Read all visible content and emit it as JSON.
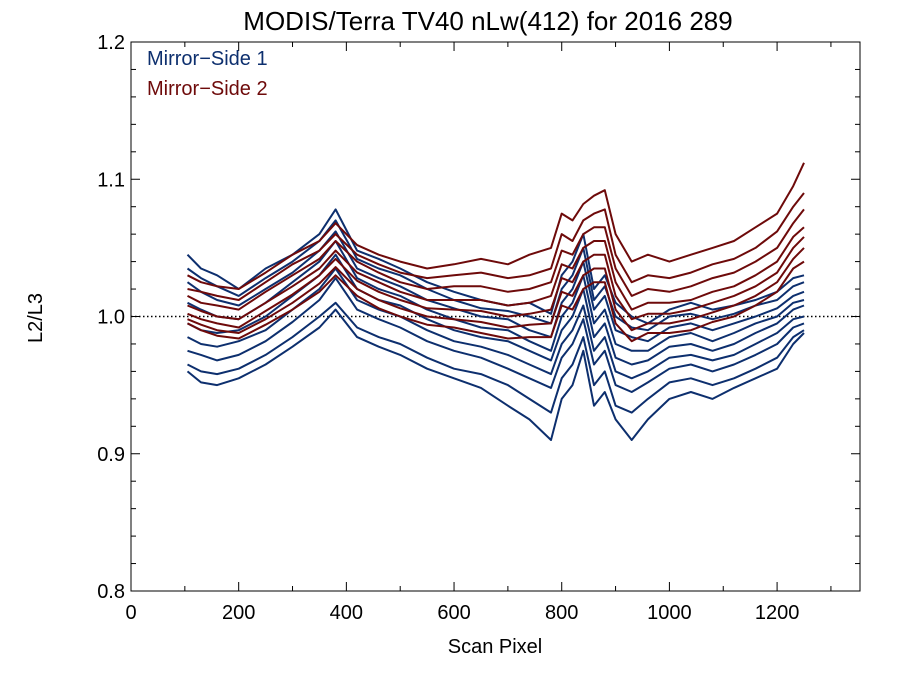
{
  "chart_data": {
    "type": "line",
    "title": "MODIS/Terra TV40 nLw(412) for 2016 289",
    "xlabel": "Scan Pixel",
    "ylabel": "L2/L3",
    "xlim": [
      0,
      1354
    ],
    "ylim": [
      0.8,
      1.2
    ],
    "xticks": [
      0,
      200,
      400,
      600,
      800,
      1000,
      1200
    ],
    "xtick_labels": [
      "0",
      "200",
      "400",
      "600",
      "800",
      "1000",
      "1200"
    ],
    "yticks": [
      0.8,
      0.9,
      1.0,
      1.1,
      1.2
    ],
    "ytick_labels": [
      "0.8",
      "0.9",
      "1.0",
      "1.1",
      "1.2"
    ],
    "reference_line": 1.0,
    "legend_position": "top-left",
    "legend": [
      {
        "label": "Mirror−Side 1",
        "color": "#0d2f6e"
      },
      {
        "label": "Mirror−Side 2",
        "color": "#6e0a0a"
      }
    ],
    "x": [
      105,
      130,
      160,
      200,
      250,
      300,
      350,
      380,
      420,
      460,
      500,
      550,
      600,
      650,
      700,
      740,
      780,
      800,
      820,
      840,
      860,
      880,
      900,
      930,
      960,
      1000,
      1040,
      1080,
      1120,
      1160,
      1200,
      1230,
      1250
    ],
    "series": [
      {
        "mirror_side": 1,
        "values": [
          1.045,
          1.035,
          1.03,
          1.02,
          1.035,
          1.045,
          1.06,
          1.078,
          1.048,
          1.042,
          1.035,
          1.025,
          1.018,
          1.012,
          1.008,
          1.01,
          1.002,
          1.03,
          1.04,
          1.06,
          1.02,
          1.03,
          1.01,
          1.0,
          0.995,
          1.005,
          1.01,
          1.005,
          1.008,
          1.012,
          1.018,
          1.028,
          1.03
        ]
      },
      {
        "mirror_side": 1,
        "values": [
          1.035,
          1.028,
          1.022,
          1.015,
          1.028,
          1.04,
          1.055,
          1.07,
          1.042,
          1.035,
          1.03,
          1.02,
          1.012,
          1.006,
          1.004,
          1.0,
          0.995,
          1.02,
          1.03,
          1.05,
          1.012,
          1.022,
          1.0,
          0.992,
          0.99,
          1.0,
          1.002,
          0.998,
          1.002,
          1.008,
          1.012,
          1.022,
          1.025
        ]
      },
      {
        "mirror_side": 1,
        "values": [
          1.025,
          1.018,
          1.012,
          1.008,
          1.02,
          1.032,
          1.048,
          1.062,
          1.035,
          1.028,
          1.022,
          1.012,
          1.006,
          1.0,
          0.998,
          0.99,
          0.985,
          1.01,
          1.02,
          1.04,
          1.005,
          1.015,
          0.99,
          0.985,
          0.982,
          0.992,
          0.995,
          0.99,
          0.995,
          1.0,
          1.006,
          1.015,
          1.018
        ]
      },
      {
        "mirror_side": 1,
        "values": [
          1.01,
          1.005,
          1.0,
          0.998,
          1.01,
          1.025,
          1.04,
          1.055,
          1.028,
          1.02,
          1.015,
          1.005,
          0.998,
          0.992,
          0.99,
          0.982,
          0.975,
          1.0,
          1.01,
          1.03,
          0.995,
          1.005,
          0.98,
          0.975,
          0.975,
          0.985,
          0.988,
          0.982,
          0.988,
          0.995,
          1.0,
          1.01,
          1.012
        ]
      },
      {
        "mirror_side": 1,
        "values": [
          0.995,
          0.99,
          0.988,
          0.99,
          1.0,
          1.015,
          1.03,
          1.045,
          1.02,
          1.012,
          1.008,
          0.998,
          0.99,
          0.985,
          0.982,
          0.975,
          0.968,
          0.99,
          1.0,
          1.02,
          0.985,
          0.995,
          0.97,
          0.965,
          0.968,
          0.978,
          0.98,
          0.975,
          0.98,
          0.988,
          0.995,
          1.005,
          1.008
        ]
      },
      {
        "mirror_side": 1,
        "values": [
          0.985,
          0.98,
          0.978,
          0.982,
          0.99,
          1.005,
          1.02,
          1.035,
          1.012,
          1.005,
          1.0,
          0.99,
          0.982,
          0.978,
          0.972,
          0.965,
          0.958,
          0.98,
          0.99,
          1.008,
          0.975,
          0.985,
          0.96,
          0.955,
          0.96,
          0.97,
          0.972,
          0.968,
          0.972,
          0.98,
          0.988,
          0.998,
          1.0
        ]
      },
      {
        "mirror_side": 1,
        "values": [
          0.975,
          0.972,
          0.968,
          0.972,
          0.982,
          0.996,
          1.012,
          1.028,
          1.005,
          0.998,
          0.992,
          0.982,
          0.975,
          0.97,
          0.962,
          0.955,
          0.948,
          0.97,
          0.98,
          0.998,
          0.965,
          0.975,
          0.95,
          0.945,
          0.952,
          0.962,
          0.965,
          0.96,
          0.965,
          0.972,
          0.98,
          0.992,
          0.995
        ]
      },
      {
        "mirror_side": 1,
        "values": [
          0.965,
          0.96,
          0.958,
          0.962,
          0.972,
          0.985,
          1.0,
          1.01,
          0.992,
          0.985,
          0.98,
          0.97,
          0.962,
          0.958,
          0.95,
          0.94,
          0.93,
          0.955,
          0.965,
          0.985,
          0.95,
          0.96,
          0.935,
          0.93,
          0.94,
          0.952,
          0.955,
          0.95,
          0.955,
          0.962,
          0.97,
          0.985,
          0.99
        ]
      },
      {
        "mirror_side": 1,
        "values": [
          0.96,
          0.952,
          0.95,
          0.955,
          0.965,
          0.978,
          0.992,
          1.005,
          0.985,
          0.978,
          0.972,
          0.962,
          0.955,
          0.948,
          0.935,
          0.925,
          0.91,
          0.94,
          0.95,
          0.975,
          0.935,
          0.945,
          0.925,
          0.91,
          0.925,
          0.94,
          0.945,
          0.94,
          0.948,
          0.955,
          0.962,
          0.98,
          0.988
        ]
      },
      {
        "mirror_side": 2,
        "values": [
          1.03,
          1.025,
          1.022,
          1.02,
          1.032,
          1.045,
          1.055,
          1.068,
          1.052,
          1.045,
          1.04,
          1.035,
          1.038,
          1.042,
          1.038,
          1.045,
          1.05,
          1.075,
          1.07,
          1.082,
          1.088,
          1.092,
          1.06,
          1.04,
          1.045,
          1.04,
          1.045,
          1.05,
          1.055,
          1.065,
          1.075,
          1.095,
          1.112
        ]
      },
      {
        "mirror_side": 2,
        "values": [
          1.02,
          1.018,
          1.015,
          1.012,
          1.025,
          1.038,
          1.048,
          1.06,
          1.045,
          1.038,
          1.032,
          1.028,
          1.03,
          1.032,
          1.028,
          1.03,
          1.035,
          1.06,
          1.055,
          1.07,
          1.075,
          1.078,
          1.045,
          1.025,
          1.03,
          1.028,
          1.032,
          1.038,
          1.042,
          1.05,
          1.062,
          1.08,
          1.09
        ]
      },
      {
        "mirror_side": 2,
        "values": [
          1.015,
          1.01,
          1.008,
          1.005,
          1.018,
          1.03,
          1.042,
          1.055,
          1.04,
          1.032,
          1.025,
          1.02,
          1.022,
          1.022,
          1.018,
          1.02,
          1.025,
          1.048,
          1.045,
          1.06,
          1.065,
          1.065,
          1.035,
          1.015,
          1.02,
          1.018,
          1.022,
          1.028,
          1.032,
          1.04,
          1.05,
          1.068,
          1.078
        ]
      },
      {
        "mirror_side": 2,
        "values": [
          1.008,
          1.004,
          1.0,
          0.998,
          1.01,
          1.022,
          1.035,
          1.048,
          1.032,
          1.025,
          1.018,
          1.012,
          1.012,
          1.012,
          1.008,
          1.01,
          1.015,
          1.038,
          1.035,
          1.05,
          1.055,
          1.055,
          1.025,
          1.005,
          1.01,
          1.01,
          1.012,
          1.018,
          1.022,
          1.03,
          1.04,
          1.058,
          1.065
        ]
      },
      {
        "mirror_side": 2,
        "values": [
          1.002,
          0.998,
          0.995,
          0.992,
          1.004,
          1.016,
          1.03,
          1.042,
          1.026,
          1.018,
          1.012,
          1.006,
          1.005,
          1.004,
          1.0,
          1.002,
          1.005,
          1.028,
          1.025,
          1.04,
          1.045,
          1.045,
          1.015,
          0.998,
          1.002,
          1.002,
          1.005,
          1.01,
          1.015,
          1.022,
          1.032,
          1.05,
          1.058
        ]
      },
      {
        "mirror_side": 2,
        "values": [
          0.998,
          0.994,
          0.99,
          0.988,
          0.998,
          1.01,
          1.024,
          1.036,
          1.02,
          1.012,
          1.006,
          1.0,
          0.998,
          0.996,
          0.992,
          0.994,
          0.995,
          1.018,
          1.015,
          1.03,
          1.035,
          1.035,
          1.005,
          0.99,
          0.995,
          0.995,
          0.998,
          1.003,
          1.008,
          1.015,
          1.025,
          1.042,
          1.05
        ]
      },
      {
        "mirror_side": 2,
        "values": [
          0.995,
          0.99,
          0.986,
          0.984,
          0.994,
          1.005,
          1.018,
          1.03,
          1.015,
          1.006,
          1.0,
          0.994,
          0.992,
          0.988,
          0.984,
          0.985,
          0.985,
          1.008,
          1.005,
          1.02,
          1.025,
          1.025,
          0.995,
          0.982,
          0.988,
          0.988,
          0.99,
          0.996,
          1.0,
          1.008,
          1.018,
          1.035,
          1.04
        ]
      }
    ]
  }
}
